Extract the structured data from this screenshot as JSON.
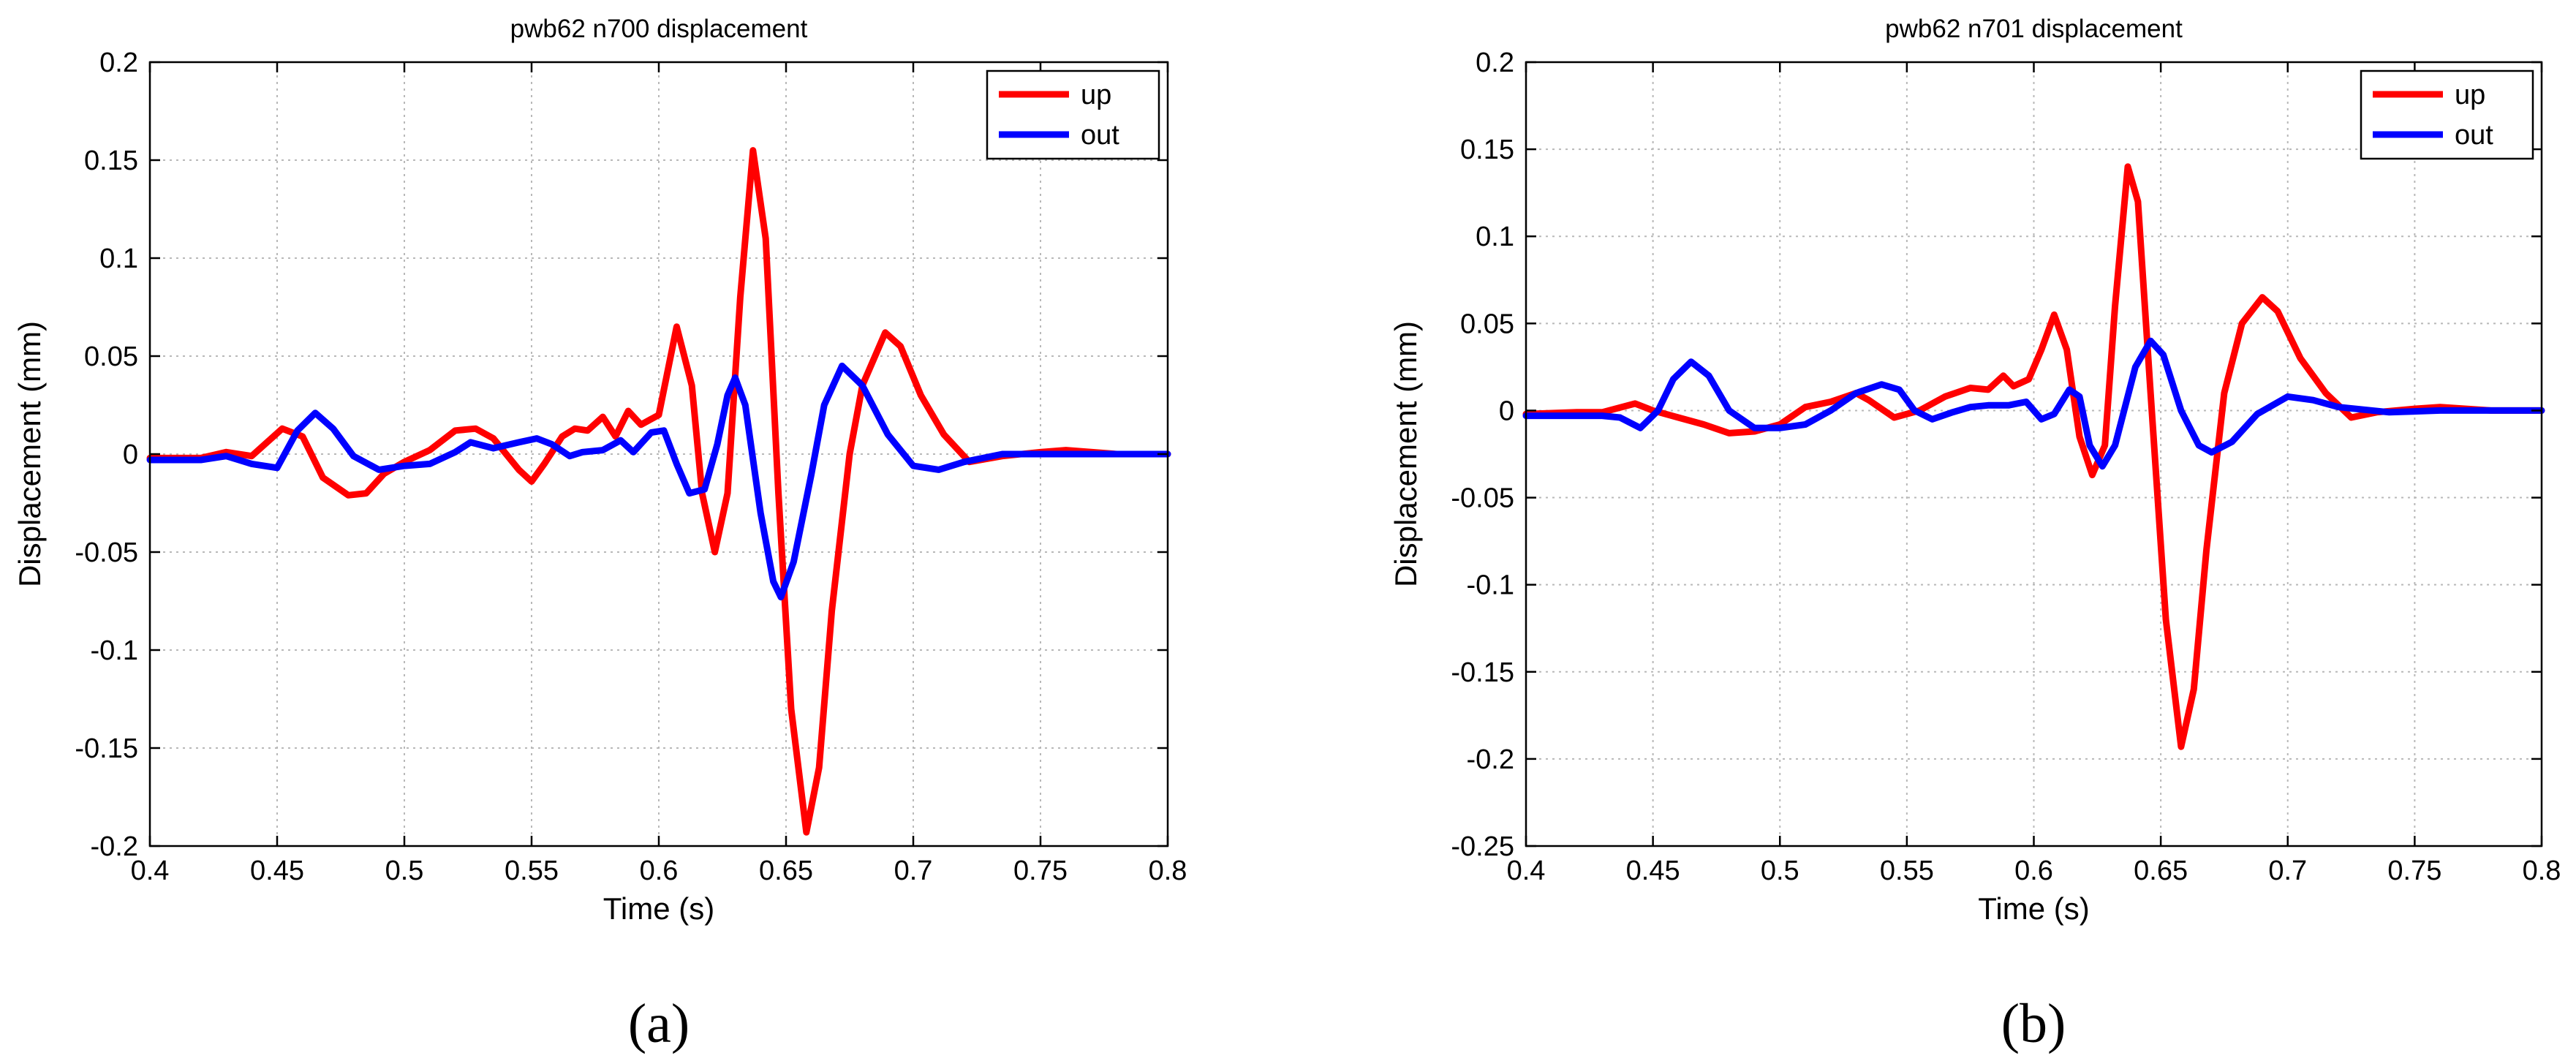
{
  "chart_data": [
    {
      "type": "line",
      "panel_label": "(a)",
      "title": "pwb62 n700 displacement",
      "xlabel": "Time (s)",
      "ylabel": "Displacement (mm)",
      "xlim": [
        0.4,
        0.8
      ],
      "ylim": [
        -0.2,
        0.2
      ],
      "x_ticks": [
        0.4,
        0.45,
        0.5,
        0.55,
        0.6,
        0.65,
        0.7,
        0.75,
        0.8
      ],
      "y_ticks": [
        -0.2,
        -0.15,
        -0.1,
        -0.05,
        0,
        0.05,
        0.1,
        0.15,
        0.2
      ],
      "x_tick_labels": [
        "0.4",
        "0.45",
        "0.5",
        "0.55",
        "0.6",
        "0.65",
        "0.7",
        "0.75",
        "0.8"
      ],
      "y_tick_labels": [
        "-0.2",
        "-0.15",
        "-0.1",
        "-0.05",
        "0",
        "0.05",
        "0.1",
        "0.15",
        "0.2"
      ],
      "grid": true,
      "legend_position": "top-right",
      "series": [
        {
          "name": "up",
          "color": "#ff0000",
          "points": [
            [
              0.4,
              -0.002
            ],
            [
              0.42,
              -0.002
            ],
            [
              0.43,
              0.001
            ],
            [
              0.44,
              -0.001
            ],
            [
              0.452,
              0.013
            ],
            [
              0.46,
              0.009
            ],
            [
              0.468,
              -0.012
            ],
            [
              0.478,
              -0.021
            ],
            [
              0.485,
              -0.02
            ],
            [
              0.492,
              -0.01
            ],
            [
              0.5,
              -0.004
            ],
            [
              0.51,
              0.002
            ],
            [
              0.52,
              0.012
            ],
            [
              0.528,
              0.013
            ],
            [
              0.535,
              0.008
            ],
            [
              0.545,
              -0.008
            ],
            [
              0.55,
              -0.014
            ],
            [
              0.555,
              -0.005
            ],
            [
              0.562,
              0.009
            ],
            [
              0.567,
              0.013
            ],
            [
              0.572,
              0.012
            ],
            [
              0.578,
              0.019
            ],
            [
              0.583,
              0.009
            ],
            [
              0.588,
              0.022
            ],
            [
              0.593,
              0.015
            ],
            [
              0.6,
              0.02
            ],
            [
              0.607,
              0.065
            ],
            [
              0.613,
              0.035
            ],
            [
              0.617,
              -0.02
            ],
            [
              0.622,
              -0.05
            ],
            [
              0.627,
              -0.02
            ],
            [
              0.632,
              0.08
            ],
            [
              0.637,
              0.155
            ],
            [
              0.642,
              0.11
            ],
            [
              0.647,
              -0.02
            ],
            [
              0.652,
              -0.13
            ],
            [
              0.658,
              -0.193
            ],
            [
              0.663,
              -0.16
            ],
            [
              0.668,
              -0.08
            ],
            [
              0.675,
              0.0
            ],
            [
              0.68,
              0.035
            ],
            [
              0.689,
              0.062
            ],
            [
              0.695,
              0.055
            ],
            [
              0.703,
              0.03
            ],
            [
              0.712,
              0.01
            ],
            [
              0.722,
              -0.004
            ],
            [
              0.735,
              -0.001
            ],
            [
              0.75,
              0.001
            ],
            [
              0.76,
              0.002
            ],
            [
              0.78,
              0.0
            ],
            [
              0.8,
              0.0
            ]
          ]
        },
        {
          "name": "out",
          "color": "#0000ff",
          "points": [
            [
              0.4,
              -0.003
            ],
            [
              0.42,
              -0.003
            ],
            [
              0.43,
              -0.001
            ],
            [
              0.44,
              -0.005
            ],
            [
              0.45,
              -0.007
            ],
            [
              0.458,
              0.012
            ],
            [
              0.465,
              0.021
            ],
            [
              0.472,
              0.013
            ],
            [
              0.48,
              -0.001
            ],
            [
              0.49,
              -0.008
            ],
            [
              0.5,
              -0.006
            ],
            [
              0.51,
              -0.005
            ],
            [
              0.52,
              0.001
            ],
            [
              0.526,
              0.006
            ],
            [
              0.535,
              0.003
            ],
            [
              0.545,
              0.006
            ],
            [
              0.552,
              0.008
            ],
            [
              0.558,
              0.005
            ],
            [
              0.565,
              -0.001
            ],
            [
              0.57,
              0.001
            ],
            [
              0.578,
              0.002
            ],
            [
              0.585,
              0.007
            ],
            [
              0.59,
              0.001
            ],
            [
              0.597,
              0.011
            ],
            [
              0.602,
              0.012
            ],
            [
              0.607,
              -0.005
            ],
            [
              0.612,
              -0.02
            ],
            [
              0.618,
              -0.018
            ],
            [
              0.623,
              0.005
            ],
            [
              0.627,
              0.03
            ],
            [
              0.63,
              0.039
            ],
            [
              0.634,
              0.025
            ],
            [
              0.64,
              -0.03
            ],
            [
              0.645,
              -0.065
            ],
            [
              0.648,
              -0.073
            ],
            [
              0.653,
              -0.055
            ],
            [
              0.66,
              -0.01
            ],
            [
              0.665,
              0.025
            ],
            [
              0.672,
              0.045
            ],
            [
              0.68,
              0.035
            ],
            [
              0.69,
              0.01
            ],
            [
              0.7,
              -0.006
            ],
            [
              0.71,
              -0.008
            ],
            [
              0.72,
              -0.004
            ],
            [
              0.735,
              0.0
            ],
            [
              0.75,
              0.0
            ],
            [
              0.8,
              0.0
            ]
          ]
        }
      ]
    },
    {
      "type": "line",
      "panel_label": "(b)",
      "title": "pwb62 n701 displacement",
      "xlabel": "Time (s)",
      "ylabel": "Displacement (mm)",
      "xlim": [
        0.4,
        0.8
      ],
      "ylim": [
        -0.25,
        0.2
      ],
      "x_ticks": [
        0.4,
        0.45,
        0.5,
        0.55,
        0.6,
        0.65,
        0.7,
        0.75,
        0.8
      ],
      "y_ticks": [
        -0.25,
        -0.2,
        -0.15,
        -0.1,
        -0.05,
        0,
        0.05,
        0.1,
        0.15,
        0.2
      ],
      "x_tick_labels": [
        "0.4",
        "0.45",
        "0.5",
        "0.55",
        "0.6",
        "0.65",
        "0.7",
        "0.75",
        "0.8"
      ],
      "y_tick_labels": [
        "-0.25",
        "-0.2",
        "-0.15",
        "-0.1",
        "-0.05",
        "0",
        "0.05",
        "0.1",
        "0.15",
        "0.2"
      ],
      "grid": true,
      "legend_position": "top-right",
      "series": [
        {
          "name": "up",
          "color": "#ff0000",
          "points": [
            [
              0.4,
              -0.002
            ],
            [
              0.42,
              -0.001
            ],
            [
              0.43,
              -0.001
            ],
            [
              0.443,
              0.004
            ],
            [
              0.45,
              0.0
            ],
            [
              0.46,
              -0.004
            ],
            [
              0.47,
              -0.008
            ],
            [
              0.48,
              -0.013
            ],
            [
              0.49,
              -0.012
            ],
            [
              0.5,
              -0.008
            ],
            [
              0.51,
              0.002
            ],
            [
              0.52,
              0.005
            ],
            [
              0.53,
              0.01
            ],
            [
              0.535,
              0.006
            ],
            [
              0.545,
              -0.004
            ],
            [
              0.555,
              0.0
            ],
            [
              0.565,
              0.008
            ],
            [
              0.575,
              0.013
            ],
            [
              0.582,
              0.012
            ],
            [
              0.588,
              0.02
            ],
            [
              0.592,
              0.014
            ],
            [
              0.598,
              0.018
            ],
            [
              0.603,
              0.035
            ],
            [
              0.608,
              0.055
            ],
            [
              0.613,
              0.035
            ],
            [
              0.618,
              -0.015
            ],
            [
              0.623,
              -0.037
            ],
            [
              0.628,
              -0.02
            ],
            [
              0.632,
              0.06
            ],
            [
              0.637,
              0.14
            ],
            [
              0.641,
              0.12
            ],
            [
              0.646,
              0.01
            ],
            [
              0.652,
              -0.12
            ],
            [
              0.658,
              -0.193
            ],
            [
              0.663,
              -0.16
            ],
            [
              0.668,
              -0.08
            ],
            [
              0.675,
              0.01
            ],
            [
              0.682,
              0.05
            ],
            [
              0.69,
              0.065
            ],
            [
              0.696,
              0.057
            ],
            [
              0.705,
              0.03
            ],
            [
              0.715,
              0.01
            ],
            [
              0.725,
              -0.004
            ],
            [
              0.735,
              -0.001
            ],
            [
              0.75,
              0.001
            ],
            [
              0.76,
              0.002
            ],
            [
              0.78,
              0.0
            ],
            [
              0.8,
              0.0
            ]
          ]
        },
        {
          "name": "out",
          "color": "#0000ff",
          "points": [
            [
              0.4,
              -0.003
            ],
            [
              0.43,
              -0.003
            ],
            [
              0.437,
              -0.004
            ],
            [
              0.445,
              -0.01
            ],
            [
              0.452,
              0.0
            ],
            [
              0.458,
              0.018
            ],
            [
              0.465,
              0.028
            ],
            [
              0.472,
              0.02
            ],
            [
              0.48,
              0.0
            ],
            [
              0.49,
              -0.01
            ],
            [
              0.5,
              -0.01
            ],
            [
              0.51,
              -0.008
            ],
            [
              0.52,
              0.0
            ],
            [
              0.53,
              0.01
            ],
            [
              0.54,
              0.015
            ],
            [
              0.547,
              0.012
            ],
            [
              0.553,
              0.0
            ],
            [
              0.56,
              -0.005
            ],
            [
              0.568,
              -0.001
            ],
            [
              0.575,
              0.002
            ],
            [
              0.582,
              0.003
            ],
            [
              0.59,
              0.003
            ],
            [
              0.597,
              0.005
            ],
            [
              0.603,
              -0.005
            ],
            [
              0.608,
              -0.002
            ],
            [
              0.614,
              0.012
            ],
            [
              0.618,
              0.008
            ],
            [
              0.622,
              -0.02
            ],
            [
              0.627,
              -0.032
            ],
            [
              0.632,
              -0.02
            ],
            [
              0.64,
              0.025
            ],
            [
              0.646,
              0.04
            ],
            [
              0.651,
              0.032
            ],
            [
              0.658,
              0.0
            ],
            [
              0.665,
              -0.02
            ],
            [
              0.67,
              -0.024
            ],
            [
              0.678,
              -0.018
            ],
            [
              0.688,
              -0.002
            ],
            [
              0.7,
              0.008
            ],
            [
              0.71,
              0.006
            ],
            [
              0.72,
              0.002
            ],
            [
              0.74,
              -0.001
            ],
            [
              0.76,
              0.0
            ],
            [
              0.8,
              0.0
            ]
          ]
        }
      ]
    }
  ]
}
